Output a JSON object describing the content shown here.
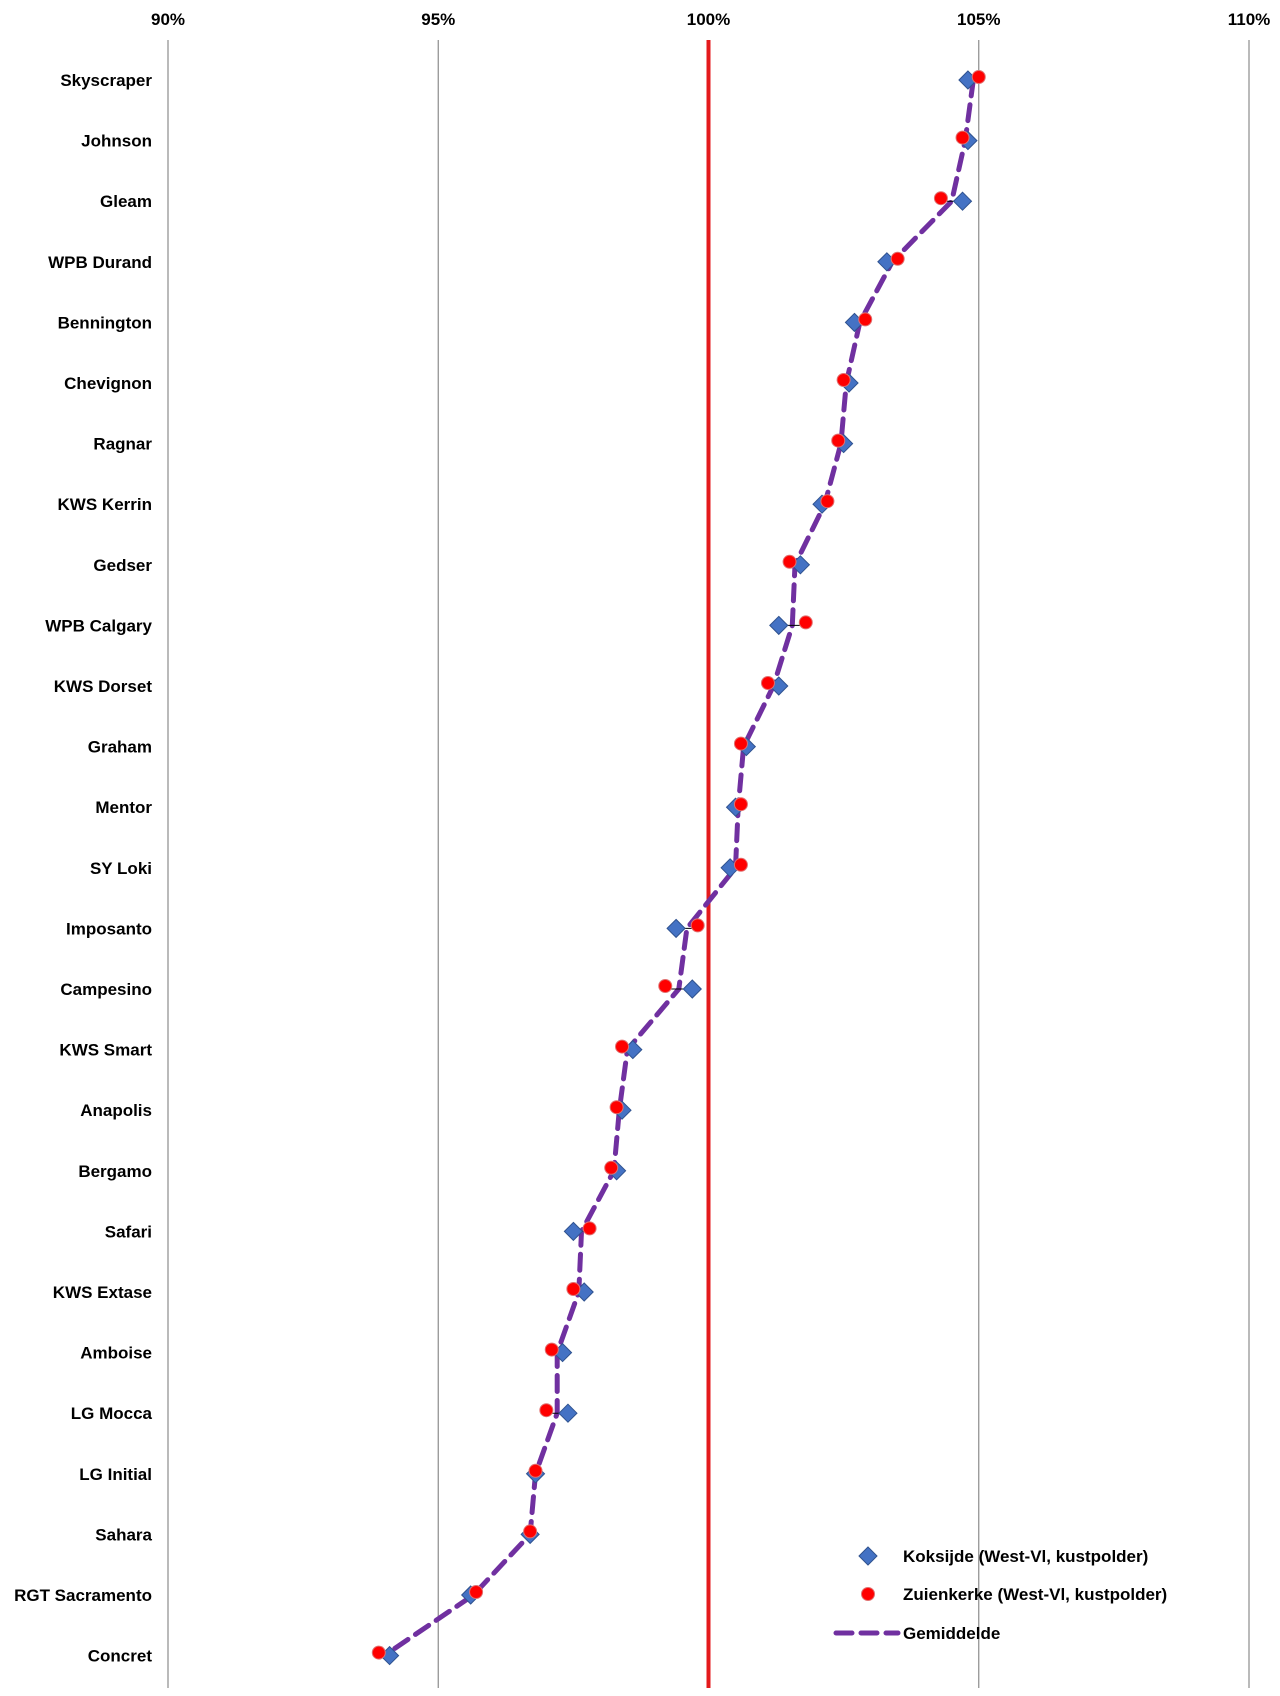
{
  "chart_data": {
    "type": "scatter",
    "title": "",
    "xlabel": "",
    "ylabel": "",
    "xlim": [
      0.9,
      1.1
    ],
    "x_ticks": [
      0.9,
      0.95,
      1.0,
      1.05,
      1.1
    ],
    "x_tick_labels": [
      "90%",
      "95%",
      "100%",
      "105%",
      "110%"
    ],
    "reference_line": {
      "value": 1.0,
      "color": "#e41a1c"
    },
    "grid": "vertical",
    "legend_position": "bottom-right",
    "categories": [
      "Skyscraper",
      "Johnson",
      "Gleam",
      "WPB Durand",
      "Bennington",
      "Chevignon",
      "Ragnar",
      "KWS Kerrin",
      "Gedser",
      "WPB Calgary",
      "KWS Dorset",
      "Graham",
      "Mentor",
      "SY Loki",
      "Imposanto",
      "Campesino",
      "KWS Smart",
      "Anapolis",
      "Bergamo",
      "Safari",
      "KWS Extase",
      "Amboise",
      "LG Mocca",
      "LG Initial",
      "Sahara",
      "RGT Sacramento",
      "Concret"
    ],
    "series": [
      {
        "name": "Koksijde (West-Vl, kustpolder)",
        "marker": "diamond",
        "color": "#4472c4",
        "values": [
          1.048,
          1.048,
          1.047,
          1.033,
          1.027,
          1.026,
          1.025,
          1.021,
          1.017,
          1.013,
          1.013,
          1.007,
          1.005,
          1.004,
          0.994,
          0.997,
          0.986,
          0.984,
          0.983,
          0.975,
          0.977,
          0.973,
          0.974,
          0.968,
          0.967,
          0.956,
          0.941
        ]
      },
      {
        "name": "Zuienkerke (West-Vl, kustpolder)",
        "marker": "circle",
        "color": "#ff0000",
        "values": [
          1.05,
          1.047,
          1.043,
          1.035,
          1.029,
          1.025,
          1.024,
          1.022,
          1.015,
          1.018,
          1.011,
          1.006,
          1.006,
          1.006,
          0.998,
          0.992,
          0.984,
          0.983,
          0.982,
          0.978,
          0.975,
          0.971,
          0.97,
          0.968,
          0.967,
          0.957,
          0.939
        ]
      },
      {
        "name": "Gemiddelde",
        "marker": "dashed-line",
        "color": "#7030a0",
        "values": [
          1.049,
          1.0475,
          1.045,
          1.034,
          1.028,
          1.0255,
          1.0245,
          1.0215,
          1.016,
          1.0155,
          1.012,
          1.0065,
          1.0055,
          1.005,
          0.996,
          0.9945,
          0.985,
          0.9835,
          0.9825,
          0.9765,
          0.976,
          0.972,
          0.972,
          0.968,
          0.967,
          0.9565,
          0.94
        ]
      }
    ]
  }
}
